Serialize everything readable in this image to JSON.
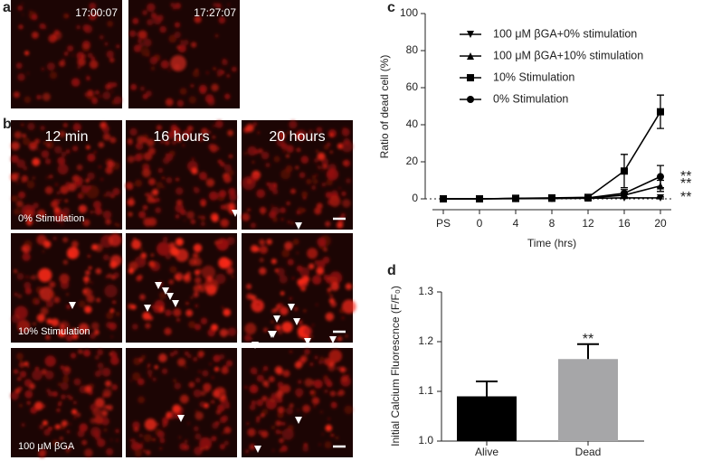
{
  "panels": {
    "a": {
      "label": "a",
      "timestamps": [
        "17:00:07",
        "17:27:07"
      ]
    },
    "b": {
      "label": "b",
      "columns": [
        "12 min",
        "16 hours",
        "20 hours"
      ],
      "rows": [
        "0% Stimulation",
        "10% Stimulation",
        "100 μM βGA"
      ]
    },
    "c": {
      "label": "c"
    },
    "d": {
      "label": "d"
    }
  },
  "chart_data": [
    {
      "type": "line",
      "xlabel": "Time (hrs)",
      "ylabel": "Ratio of dead cell (%)",
      "categories": [
        "PS",
        "0",
        "4",
        "8",
        "12",
        "16",
        "20"
      ],
      "ylim": [
        0,
        100
      ],
      "yticks": [
        0,
        20,
        40,
        60,
        80,
        100
      ],
      "series": [
        {
          "name": "100 μM βGA+0% stimulation",
          "marker": "triangle-down",
          "color": "#000000",
          "values": [
            0,
            0,
            0.1,
            0.2,
            0.3,
            0.5,
            0.5
          ],
          "errors": [
            0,
            0,
            0,
            0,
            0,
            0.3,
            0.5
          ]
        },
        {
          "name": "100 μM βGA+10% stimulation",
          "marker": "triangle-up",
          "color": "#000000",
          "values": [
            0,
            0,
            0.2,
            0.3,
            0.5,
            2,
            7
          ],
          "errors": [
            0,
            0,
            0.1,
            0.2,
            0.3,
            1.5,
            3
          ]
        },
        {
          "name": "10% Stimulation",
          "marker": "square",
          "color": "#000000",
          "values": [
            0,
            0,
            0.3,
            0.5,
            0.8,
            15,
            47
          ],
          "errors": [
            0,
            0,
            0.2,
            0.3,
            0.3,
            9,
            9
          ]
        },
        {
          "name": "0% Stimulation",
          "marker": "circle",
          "color": "#000000",
          "values": [
            0,
            0,
            0.2,
            0.3,
            0.5,
            3,
            12
          ],
          "errors": [
            0,
            0,
            0.1,
            0.2,
            0.3,
            2,
            6
          ]
        }
      ],
      "annotations": [
        "**",
        "**",
        "**"
      ]
    },
    {
      "type": "bar",
      "ylabel": "Initial Calcium Fluorescnce (F/F₀)",
      "categories": [
        "Alive",
        "Dead"
      ],
      "values": [
        1.09,
        1.165
      ],
      "errors": [
        0.03,
        0.03
      ],
      "colors": [
        "#000000",
        "#a6a6a8"
      ],
      "ylim": [
        1.0,
        1.3
      ],
      "yticks": [
        {
          "value": 1.0,
          "label": "1.0"
        },
        1.1,
        1.2,
        1.3
      ],
      "annotations": [
        "**"
      ]
    }
  ]
}
